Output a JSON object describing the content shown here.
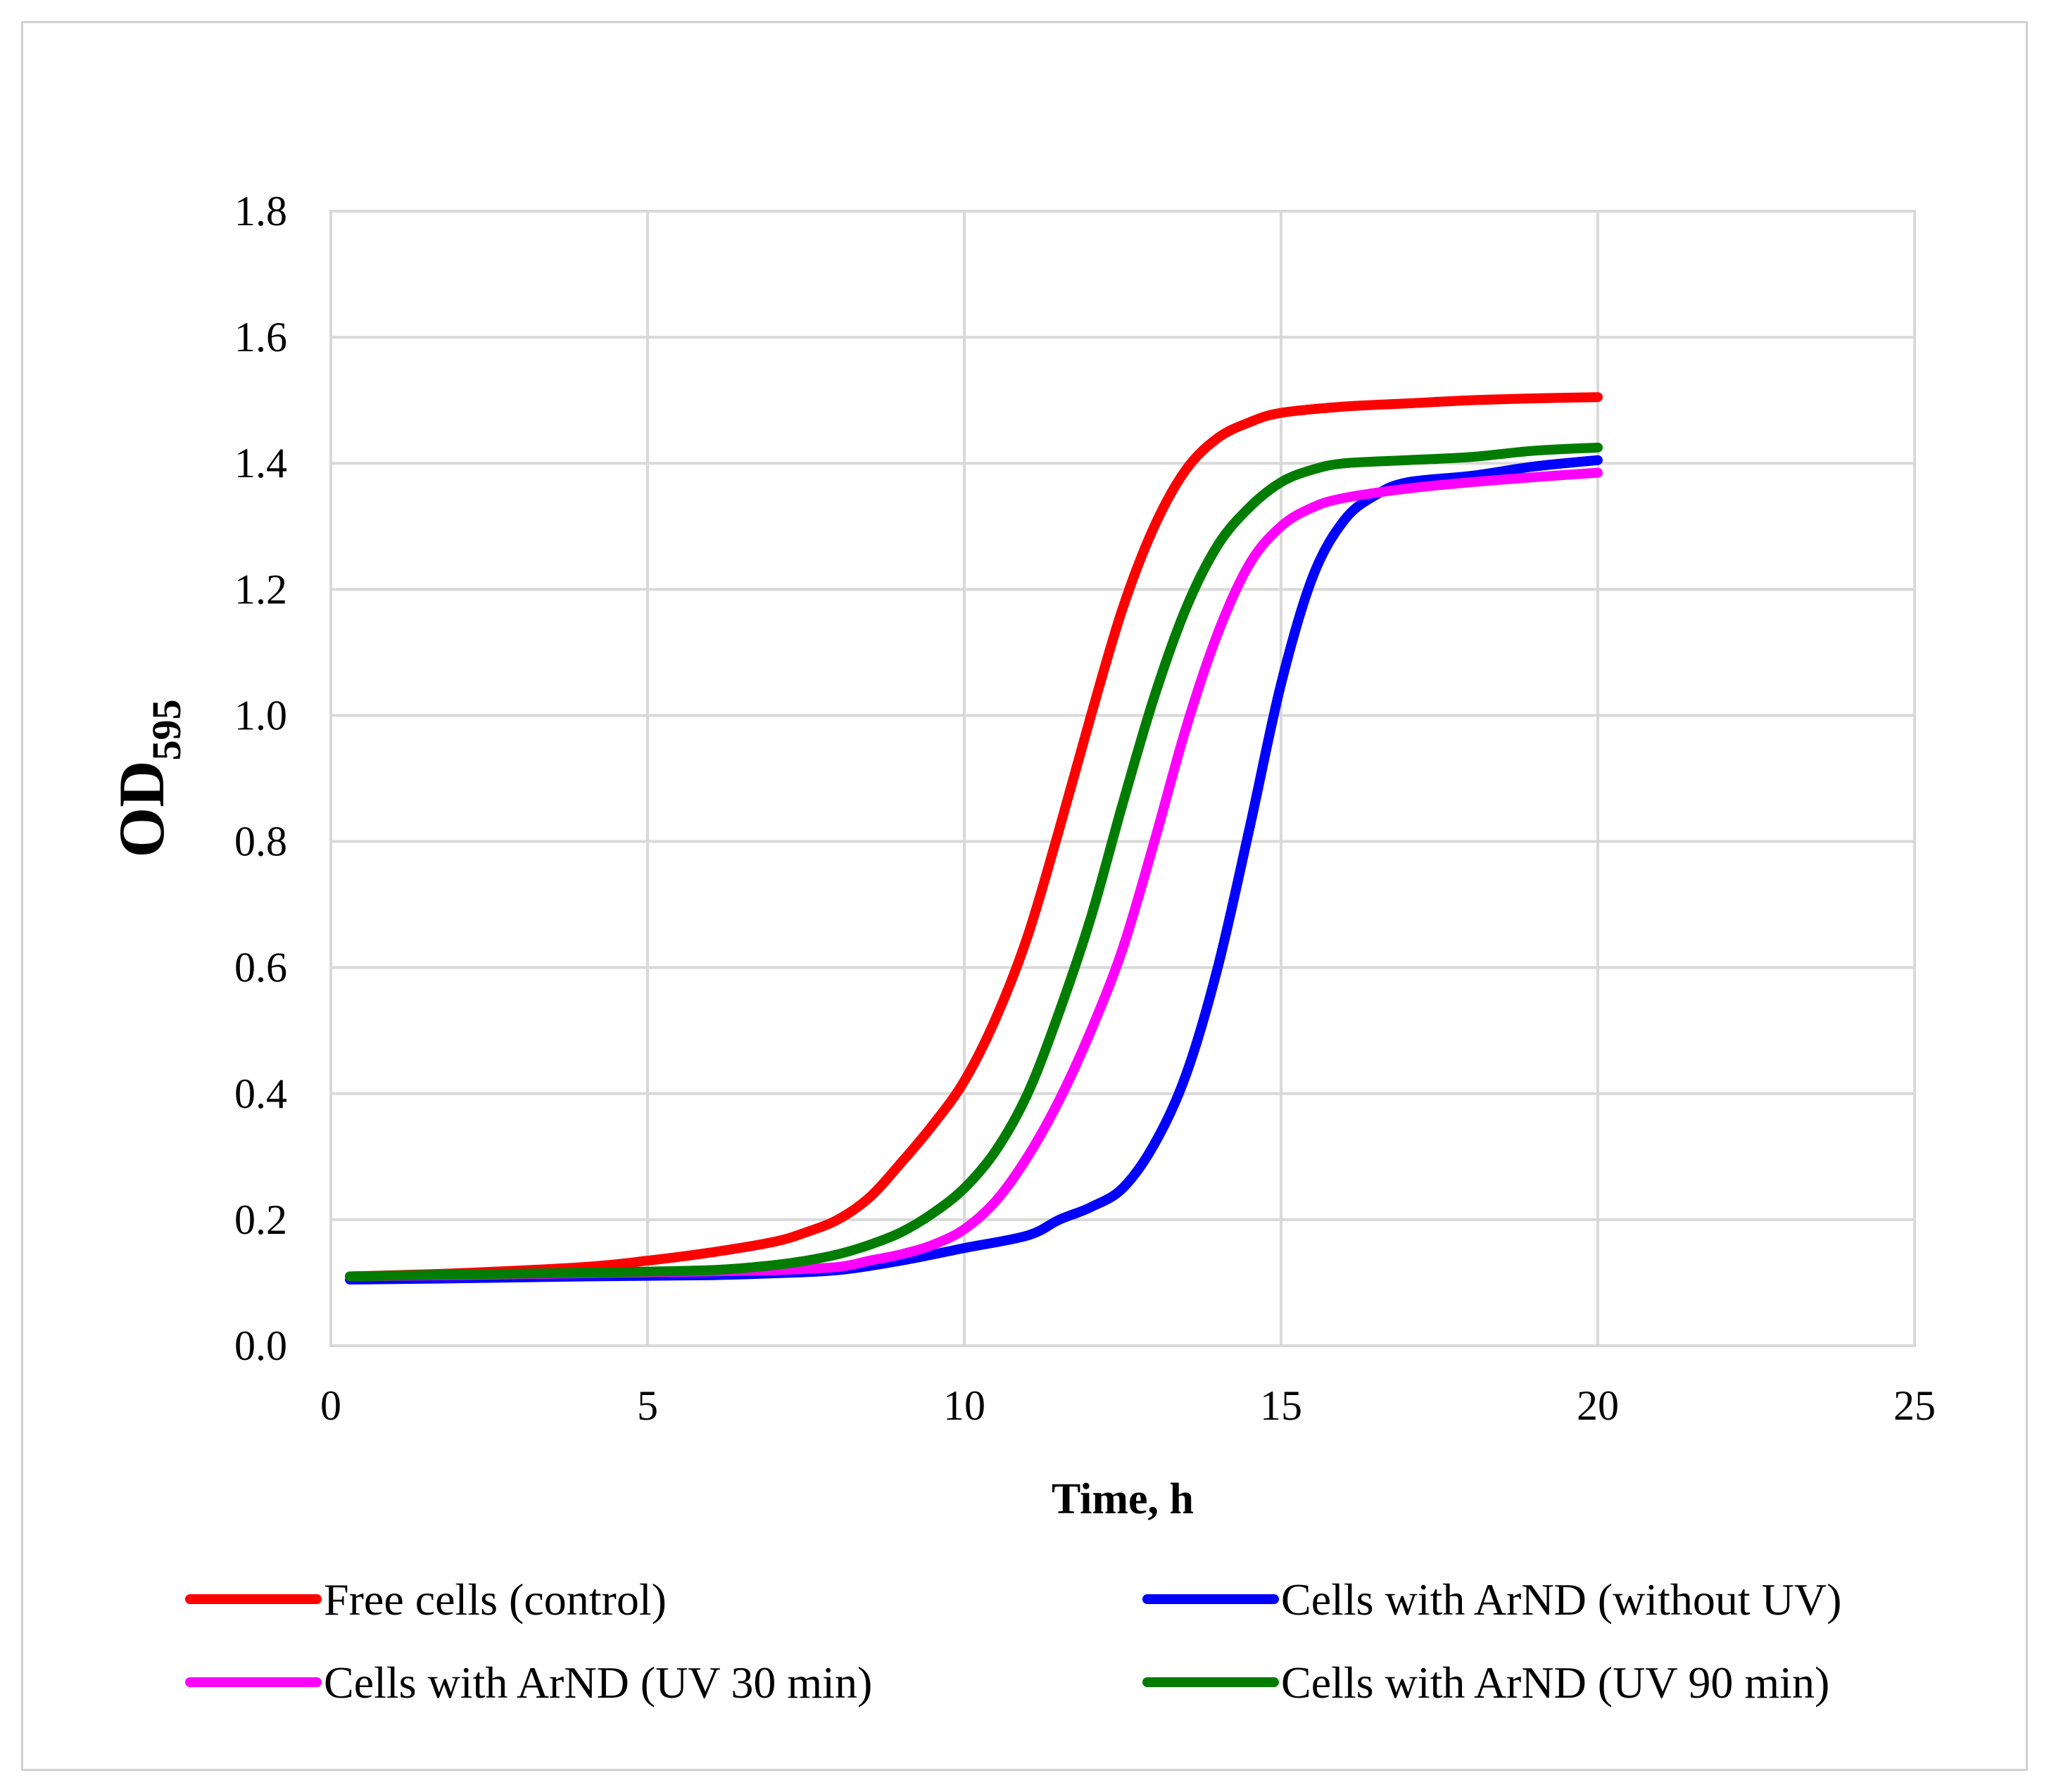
{
  "chart_data": {
    "type": "line",
    "title": "",
    "xlabel": "Time, h",
    "ylabel_main": "OD",
    "ylabel_sub": "595",
    "xlim": [
      0,
      25
    ],
    "ylim": [
      0.0,
      1.8
    ],
    "xticks": [
      0,
      5,
      10,
      15,
      20,
      25
    ],
    "yticks": [
      "0.0",
      "0.2",
      "0.4",
      "0.6",
      "0.8",
      "1.0",
      "1.2",
      "1.4",
      "1.6",
      "1.8"
    ],
    "grid": true,
    "legend_position": "bottom",
    "series": [
      {
        "name": "Free cells (control)",
        "color": "#ff0000",
        "x": [
          0.3,
          2,
          4,
          5,
          6,
          7,
          7.5,
          8,
          8.5,
          9,
          9.5,
          10,
          10.5,
          11,
          11.5,
          12,
          12.5,
          13,
          13.5,
          14,
          14.5,
          15,
          16,
          17,
          18,
          19,
          20
        ],
        "y": [
          0.11,
          0.115,
          0.125,
          0.135,
          0.148,
          0.165,
          0.18,
          0.2,
          0.235,
          0.29,
          0.35,
          0.42,
          0.52,
          0.65,
          0.82,
          1.0,
          1.17,
          1.3,
          1.39,
          1.44,
          1.465,
          1.48,
          1.49,
          1.495,
          1.5,
          1.503,
          1.505
        ]
      },
      {
        "name": "Cells with ArND (without UV)",
        "color": "#0000ff",
        "x": [
          0.3,
          2,
          4,
          6,
          7,
          8,
          9,
          10,
          11,
          11.5,
          12,
          12.5,
          13,
          13.5,
          14,
          14.5,
          15,
          15.5,
          16,
          16.5,
          17,
          18,
          19,
          20
        ],
        "y": [
          0.105,
          0.107,
          0.11,
          0.112,
          0.115,
          0.12,
          0.135,
          0.155,
          0.175,
          0.2,
          0.22,
          0.25,
          0.32,
          0.43,
          0.6,
          0.82,
          1.05,
          1.22,
          1.31,
          1.35,
          1.37,
          1.38,
          1.395,
          1.405
        ]
      },
      {
        "name": "Cells with ArND (UV 30 min)",
        "color": "#ff00ff",
        "x": [
          0.3,
          2,
          4,
          6,
          7,
          8,
          8.5,
          9,
          9.5,
          10,
          10.5,
          11,
          11.5,
          12,
          12.5,
          13,
          13.5,
          14,
          14.5,
          15,
          15.5,
          16,
          17,
          18,
          19,
          20
        ],
        "y": [
          0.11,
          0.112,
          0.115,
          0.118,
          0.12,
          0.125,
          0.135,
          0.145,
          0.16,
          0.185,
          0.23,
          0.3,
          0.39,
          0.5,
          0.63,
          0.8,
          0.98,
          1.13,
          1.24,
          1.3,
          1.33,
          1.345,
          1.36,
          1.37,
          1.378,
          1.385
        ]
      },
      {
        "name": "Cells with ArND (UV 90 min)",
        "color": "#007d00",
        "x": [
          0.3,
          2,
          4,
          6,
          7,
          7.5,
          8,
          8.5,
          9,
          9.5,
          10,
          10.5,
          11,
          11.5,
          12,
          12.5,
          13,
          13.5,
          14,
          14.5,
          15,
          15.5,
          16,
          17,
          18,
          19,
          20
        ],
        "y": [
          0.11,
          0.113,
          0.116,
          0.12,
          0.128,
          0.135,
          0.145,
          0.16,
          0.18,
          0.21,
          0.25,
          0.31,
          0.4,
          0.53,
          0.68,
          0.86,
          1.03,
          1.17,
          1.27,
          1.33,
          1.37,
          1.39,
          1.4,
          1.405,
          1.41,
          1.42,
          1.425
        ]
      }
    ]
  }
}
